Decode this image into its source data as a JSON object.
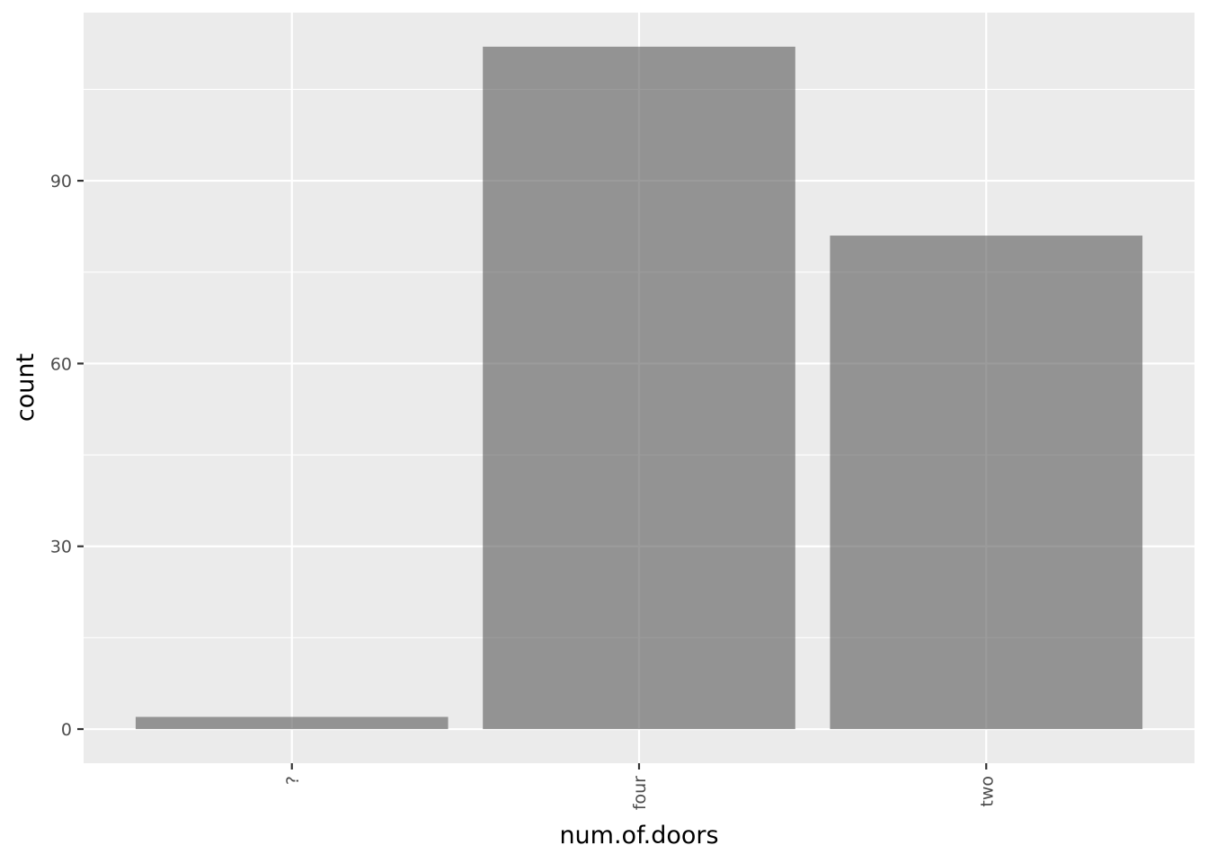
{
  "chart_data": {
    "type": "bar",
    "categories": [
      "?",
      "four",
      "two"
    ],
    "values": [
      2,
      112,
      81
    ],
    "title": "",
    "xlabel": "num.of.doors",
    "ylabel": "count",
    "ylim": [
      -5.6,
      117.6
    ],
    "yticks": [
      0,
      30,
      60,
      90
    ],
    "yticks_minor": [
      15,
      45,
      75,
      105
    ],
    "x_tick_label_rotation": -90,
    "grid": true,
    "bar_color": "#595959",
    "bar_opacity": 0.6,
    "panel_background": "#ebebeb",
    "gridline_color": "#ffffff",
    "legend": "none"
  }
}
